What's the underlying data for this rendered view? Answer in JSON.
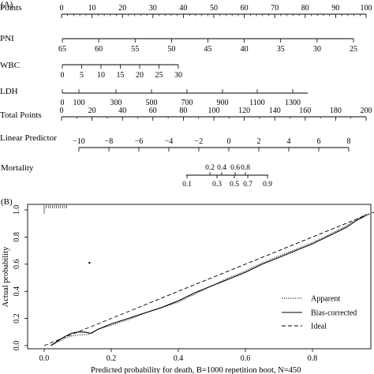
{
  "panel_a": {
    "label": "(A)",
    "rows": [
      {
        "name": "Points",
        "ticks": [
          "0",
          "10",
          "20",
          "30",
          "40",
          "50",
          "60",
          "70",
          "80",
          "90",
          "100"
        ]
      },
      {
        "name": "PNI",
        "ticks": [
          "65",
          "60",
          "55",
          "50",
          "45",
          "40",
          "35",
          "30",
          "25"
        ]
      },
      {
        "name": "WBC",
        "ticks": [
          "0",
          "5",
          "10",
          "15",
          "20",
          "25",
          "30"
        ]
      },
      {
        "name": "LDH",
        "ticks": [
          "0",
          "100",
          "300",
          "500",
          "700",
          "900",
          "1100",
          "1300"
        ]
      },
      {
        "name": "Total Points",
        "ticks": [
          "0",
          "20",
          "40",
          "60",
          "80",
          "100",
          "120",
          "140",
          "160",
          "180",
          "200"
        ]
      },
      {
        "name": "Linear Predictor",
        "ticks": [
          "−10",
          "−8",
          "−6",
          "−4",
          "−2",
          "0",
          "2",
          "4",
          "6",
          "8"
        ]
      },
      {
        "name": "Mortality",
        "ticks_upper": [
          "0.2",
          "0.4",
          "0.6",
          "0.8"
        ],
        "ticks_lower": [
          "0.1",
          "0.3",
          "0.5",
          "0.7",
          "0.9"
        ]
      }
    ]
  },
  "chart_data": {
    "type": "line",
    "panel_label": "(B)",
    "xlabel": "Predicted probability for death",
    "footnote": "B=1000 repetition boot, N=450",
    "ylabel": "Actual probability",
    "xlim": [
      0.0,
      1.0
    ],
    "ylim": [
      0.0,
      1.0
    ],
    "x_ticks": [
      "0.0",
      "0.2",
      "0.4",
      "0.6",
      "0.8",
      "1.0"
    ],
    "y_ticks": [
      "0.0",
      "0.2",
      "0.4",
      "0.6",
      "0.8",
      "1.0"
    ],
    "legend_position": "bottom-right",
    "series": [
      {
        "name": "Apparent",
        "style": "dotted",
        "x": [
          0.02,
          0.05,
          0.08,
          0.11,
          0.13,
          0.16,
          0.2,
          0.25,
          0.3,
          0.35,
          0.4,
          0.45,
          0.5,
          0.55,
          0.6,
          0.65,
          0.7,
          0.75,
          0.8,
          0.85,
          0.9,
          0.93,
          0.96
        ],
        "y": [
          0.0,
          0.04,
          0.07,
          0.08,
          0.08,
          0.12,
          0.15,
          0.19,
          0.24,
          0.28,
          0.32,
          0.38,
          0.44,
          0.5,
          0.55,
          0.61,
          0.66,
          0.71,
          0.76,
          0.82,
          0.88,
          0.93,
          0.97
        ]
      },
      {
        "name": "Bias-corrected",
        "style": "solid",
        "x": [
          0.02,
          0.05,
          0.08,
          0.1,
          0.12,
          0.14,
          0.16,
          0.2,
          0.25,
          0.3,
          0.35,
          0.4,
          0.45,
          0.5,
          0.55,
          0.6,
          0.65,
          0.7,
          0.75,
          0.8,
          0.85,
          0.9,
          0.93,
          0.96
        ],
        "y": [
          0.0,
          0.05,
          0.09,
          0.1,
          0.1,
          0.09,
          0.12,
          0.16,
          0.2,
          0.24,
          0.28,
          0.33,
          0.39,
          0.44,
          0.49,
          0.54,
          0.6,
          0.65,
          0.7,
          0.75,
          0.81,
          0.87,
          0.92,
          0.96
        ]
      },
      {
        "name": "Ideal",
        "style": "dashed",
        "x": [
          0.0,
          1.0
        ],
        "y": [
          0.0,
          1.0
        ]
      }
    ],
    "outlier_point": {
      "x": 0.135,
      "y": 0.61
    }
  }
}
